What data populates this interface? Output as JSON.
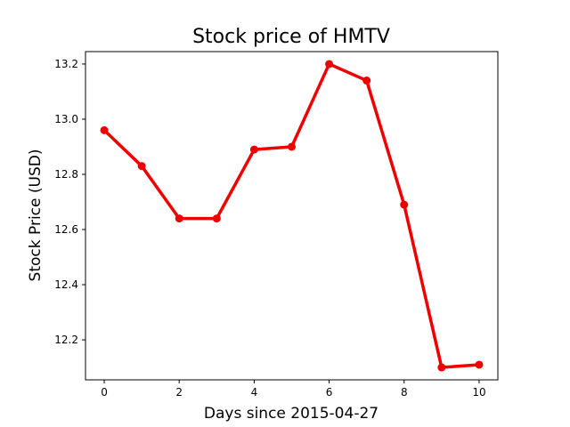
{
  "chart_data": {
    "type": "line",
    "title": "Stock price of HMTV",
    "xlabel": "Days since 2015-04-27",
    "ylabel": "Stock Price (USD)",
    "x": [
      0,
      1,
      2,
      3,
      4,
      5,
      6,
      7,
      8,
      9,
      10
    ],
    "series": [
      {
        "values": [
          12.96,
          12.83,
          12.64,
          12.64,
          12.89,
          12.9,
          13.2,
          13.14,
          12.69,
          12.1,
          12.11
        ],
        "color": "#ee0000",
        "marker": "circle"
      }
    ],
    "xlim": [
      -0.5,
      10.5
    ],
    "ylim": [
      12.055,
      13.245
    ],
    "xticks": [
      0,
      2,
      4,
      6,
      8,
      10
    ],
    "xtick_labels": [
      "0",
      "2",
      "4",
      "6",
      "8",
      "10"
    ],
    "yticks": [
      12.2,
      12.4,
      12.6,
      12.8,
      13.0,
      13.2
    ],
    "ytick_labels": [
      "12.2",
      "12.4",
      "12.6",
      "12.8",
      "13.0",
      "13.2"
    ],
    "grid": false,
    "legend": false
  }
}
